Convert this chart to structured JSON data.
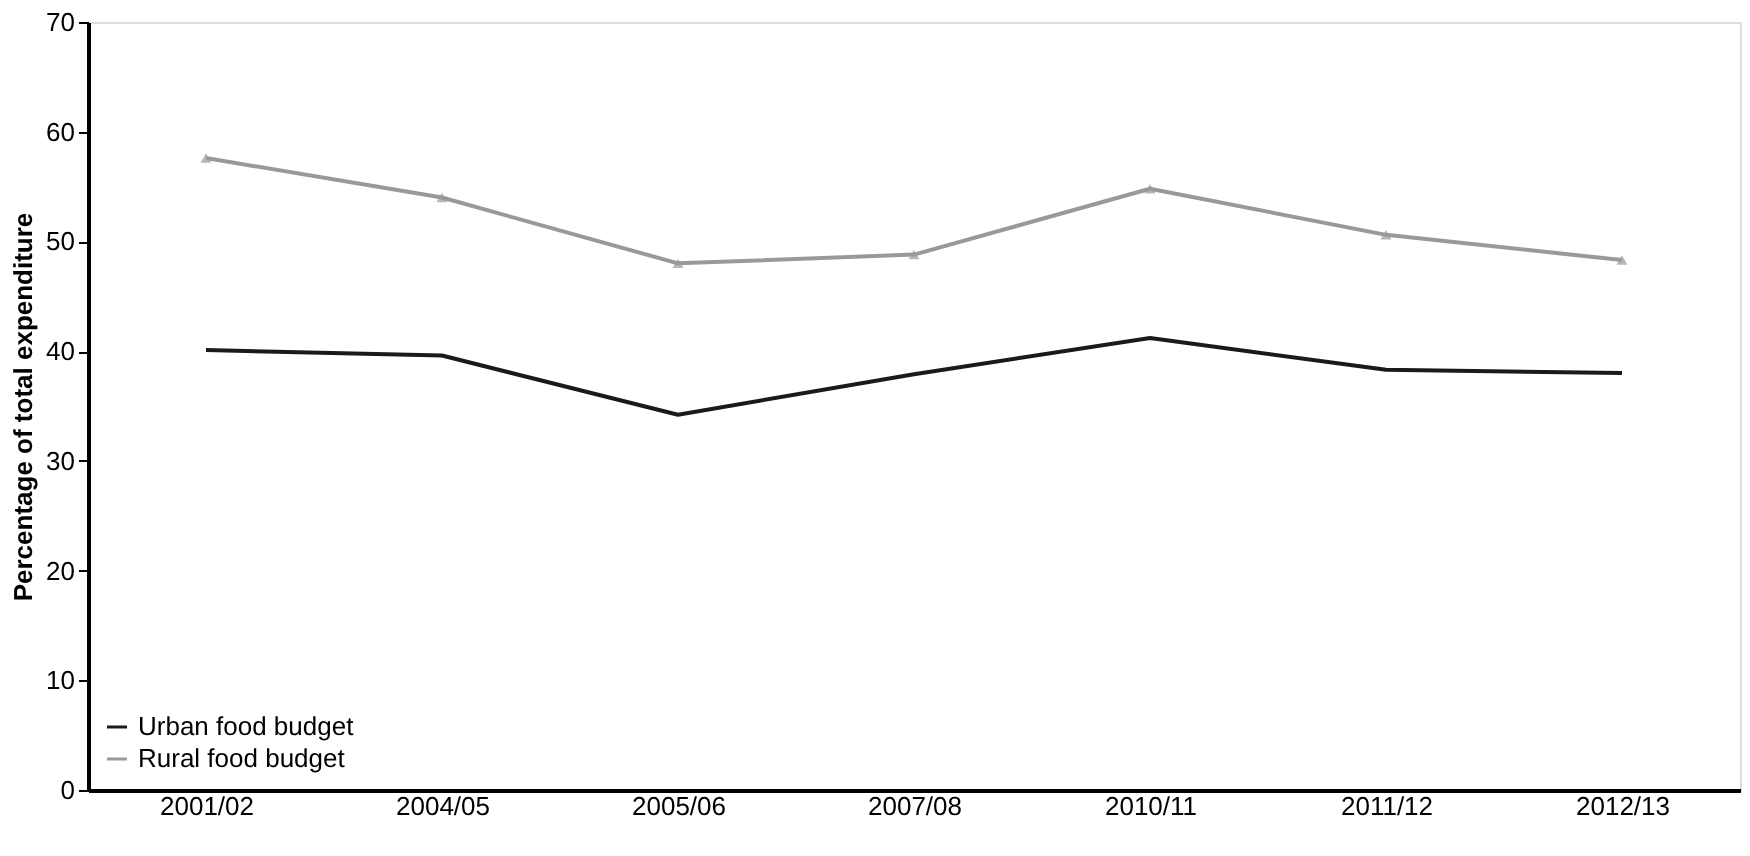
{
  "chart_data": {
    "type": "line",
    "ylabel": "Percentage of total expenditure",
    "categories": [
      "2001/02",
      "2004/05",
      "2005/06",
      "2007/08",
      "2010/11",
      "2011/12",
      "2012/13"
    ],
    "series": [
      {
        "name": "Urban food budget",
        "color": "#1a1a1a",
        "marker": "none",
        "values": [
          40.1,
          39.6,
          34.2,
          37.9,
          41.2,
          38.3,
          38.0
        ]
      },
      {
        "name": "Rural food budget",
        "color": "#999999",
        "marker": "triangle",
        "values": [
          57.6,
          54.0,
          48.0,
          48.8,
          54.8,
          50.6,
          48.3
        ]
      }
    ],
    "ylim": [
      0,
      70
    ],
    "yticks": [
      0,
      10,
      20,
      30,
      40,
      50,
      60,
      70
    ],
    "grid": false,
    "legend": "bottom left",
    "line_style": "solid"
  }
}
